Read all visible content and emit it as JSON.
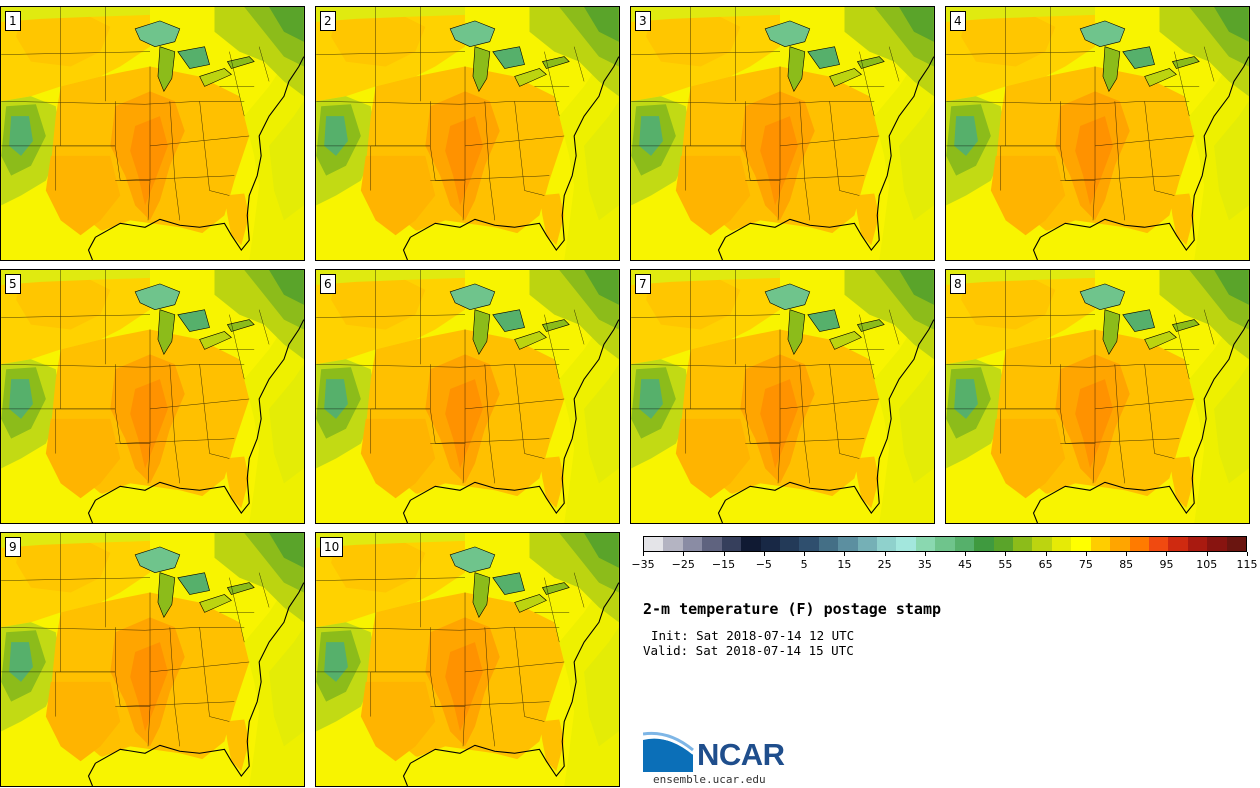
{
  "title": "2-m temperature (F) postage stamp",
  "init_text": "Init: Sat 2018-07-14 12 UTC",
  "valid_text": "Valid: Sat 2018-07-14 15 UTC",
  "members": [
    "1",
    "2",
    "3",
    "4",
    "5",
    "6",
    "7",
    "8",
    "9",
    "10"
  ],
  "colorbar": {
    "colors": [
      "#e4e4e8",
      "#b4b4c2",
      "#8a8ca4",
      "#5f637f",
      "#363f5c",
      "#101a33",
      "#182845",
      "#233a58",
      "#2f4f6e",
      "#446f86",
      "#5c8fa0",
      "#75b0b6",
      "#8fd1cc",
      "#a3e7dd",
      "#8ad8b0",
      "#6fc48c",
      "#56b06b",
      "#3f9a3f",
      "#5aa42a",
      "#8cbc1a",
      "#bcd410",
      "#e6ea06",
      "#ffff00",
      "#ffcd00",
      "#ffa500",
      "#ff7b00",
      "#f04a10",
      "#cf2a10",
      "#a91a10",
      "#881410",
      "#6a1510"
    ],
    "ticks": [
      "-35",
      "-25",
      "-15",
      "-5",
      "5",
      "15",
      "25",
      "35",
      "45",
      "55",
      "65",
      "75",
      "85",
      "95",
      "105",
      "115"
    ]
  },
  "logo": {
    "text": "NCAR",
    "url": "ensemble.ucar.edu"
  }
}
